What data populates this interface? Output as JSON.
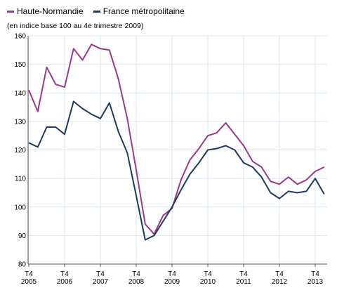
{
  "colors": {
    "series0": "#9b3a8c",
    "series1": "#1f3a5f",
    "grid": "#dbe6f0",
    "axis": "#555555"
  },
  "legend": {
    "items": [
      {
        "label": "Haute-Normandie"
      },
      {
        "label": "France métropolitaine"
      }
    ]
  },
  "subtitle": "(en indice base 100 au 4e trimestre 2009)",
  "chart_data": {
    "type": "line",
    "title": "",
    "subtitle": "(en indice base 100 au 4e trimestre 2009)",
    "xlabel": "",
    "ylabel": "",
    "ylim": [
      80,
      160
    ],
    "yticks": [
      80,
      90,
      100,
      110,
      120,
      130,
      140,
      150,
      160
    ],
    "grid": true,
    "legend_position": "top-left",
    "x": [
      "T4 2005",
      "T1 2006",
      "T2 2006",
      "T3 2006",
      "T4 2006",
      "T1 2007",
      "T2 2007",
      "T3 2007",
      "T4 2007",
      "T1 2008",
      "T2 2008",
      "T3 2008",
      "T4 2008",
      "T1 2009",
      "T2 2009",
      "T3 2009",
      "T4 2009",
      "T1 2010",
      "T2 2010",
      "T3 2010",
      "T4 2010",
      "T1 2011",
      "T2 2011",
      "T3 2011",
      "T4 2011",
      "T1 2012",
      "T2 2012",
      "T3 2012",
      "T4 2012",
      "T1 2013",
      "T2 2013",
      "T3 2013",
      "T4 2013",
      "T1 2014"
    ],
    "x_tick_labels": [
      {
        "top": "T4",
        "bottom": "2005"
      },
      {
        "top": "T4",
        "bottom": "2006"
      },
      {
        "top": "T4",
        "bottom": "2007"
      },
      {
        "top": "T4",
        "bottom": "2008"
      },
      {
        "top": "T4",
        "bottom": "2009"
      },
      {
        "top": "T4",
        "bottom": "2010"
      },
      {
        "top": "T4",
        "bottom": "2011"
      },
      {
        "top": "T4",
        "bottom": "2012"
      },
      {
        "top": "T4",
        "bottom": "2013"
      }
    ],
    "series": [
      {
        "name": "Haute-Normandie",
        "values": [
          141,
          133.5,
          149,
          143,
          142,
          155.5,
          151.5,
          157,
          155.5,
          155,
          145,
          131,
          113,
          94,
          90.5,
          97,
          99.5,
          109.5,
          116.5,
          120.5,
          125,
          126,
          129.5,
          125.5,
          121.5,
          116,
          114,
          109,
          108,
          110.5,
          108,
          109.5,
          112.5,
          114
        ]
      },
      {
        "name": "France métropolitaine",
        "values": [
          122.5,
          121,
          128,
          128,
          125.5,
          137,
          134.5,
          132.5,
          131,
          136.5,
          126.5,
          119,
          104,
          88.5,
          90,
          95,
          100,
          106,
          111.5,
          115.5,
          120,
          120.5,
          121.5,
          120,
          115.5,
          114,
          110.5,
          105,
          103,
          105.5,
          105,
          105.5,
          110,
          104.5
        ]
      }
    ]
  }
}
